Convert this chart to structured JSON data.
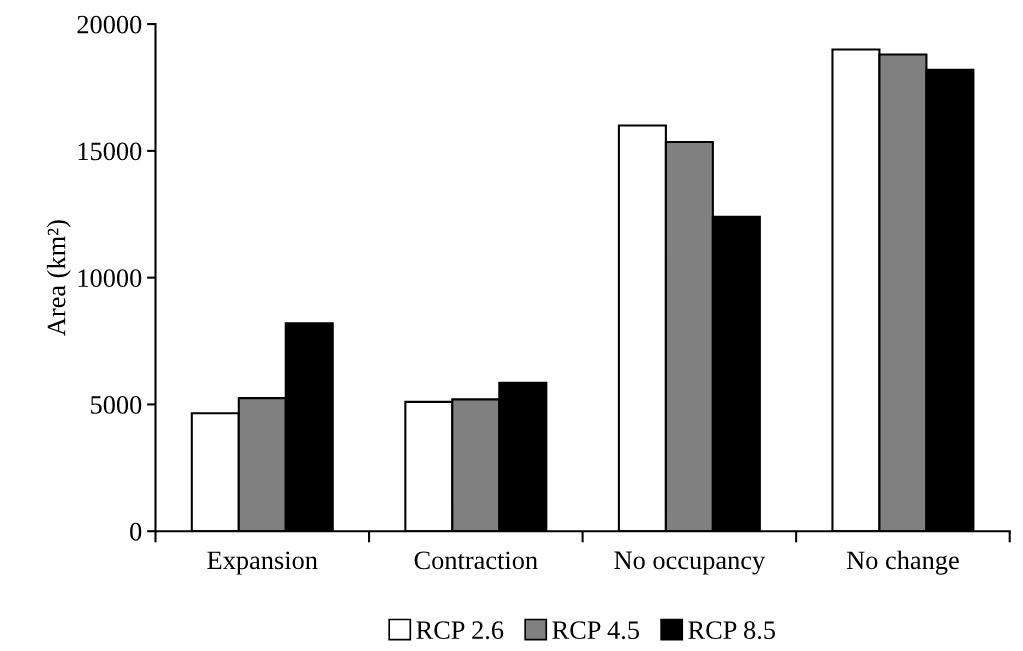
{
  "chart_data": {
    "type": "bar",
    "ylabel": "Area (km²)",
    "categories": [
      "Expansion",
      "Contraction",
      "No occupancy",
      "No change"
    ],
    "series": [
      {
        "name": "RCP 2.6",
        "color": "#ffffff",
        "values": [
          4650,
          5100,
          16000,
          19000
        ]
      },
      {
        "name": "RCP 4.5",
        "color": "#808080",
        "values": [
          5250,
          5200,
          15350,
          18800
        ]
      },
      {
        "name": "RCP 8.5",
        "color": "#000000",
        "values": [
          8200,
          5850,
          12400,
          18200
        ]
      }
    ],
    "ylim": [
      0,
      20000
    ],
    "yticks": [
      0,
      5000,
      10000,
      15000,
      20000
    ],
    "grid": false,
    "legend": "bottom"
  }
}
